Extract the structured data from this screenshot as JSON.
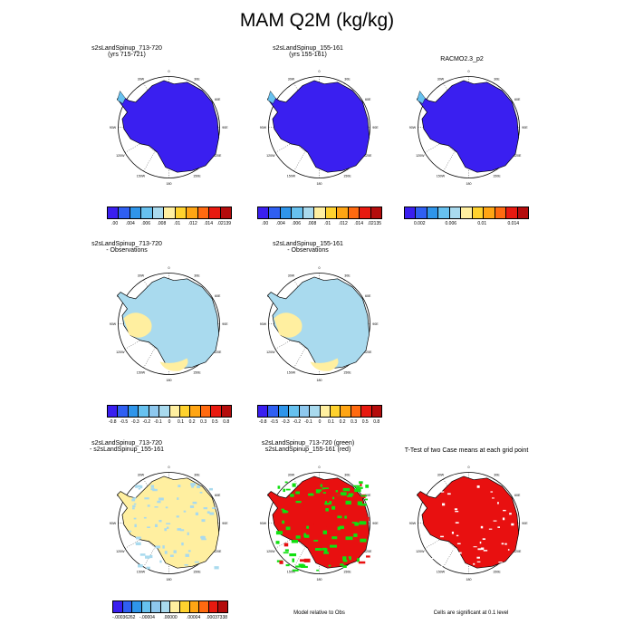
{
  "title": "MAM Q2M (kg/kg)",
  "panels": [
    {
      "line1": "s2sLandSpinup_713-720",
      "line2": "(yrs 715-721)",
      "fill": "model"
    },
    {
      "line1": "s2sLandSpinup_155-161",
      "line2": "(yrs 155-161)",
      "fill": "model"
    },
    {
      "line1": "RACMO2.3_p2",
      "line2": "",
      "fill": "model"
    },
    {
      "line1": "s2sLandSpinup_713-720",
      "line2": "- Observations",
      "fill": "bias"
    },
    {
      "line1": "s2sLandSpinup_155-161",
      "line2": "- Observations",
      "fill": "bias"
    },
    {
      "line1": "s2sLandSpinup_713-720",
      "line2": "- s2sLandSpinup_155-161",
      "fill": "diff"
    },
    {
      "line1": "s2sLandSpinup_713-720 (green)",
      "line2": "s2sLandSpinup_155-161 (red)",
      "fill": "redgreen"
    },
    {
      "line1": "T-Test of two Case means at each grid point",
      "line2": "",
      "fill": "ttest"
    }
  ],
  "lon_labels": [
    "0",
    "30E",
    "60E",
    "90E",
    "120E",
    "150E",
    "180",
    "150W",
    "120W",
    "90W",
    "60W",
    "30W"
  ],
  "colorbars": [
    {
      "colors": [
        "#3a1ff0",
        "#2f5ff2",
        "#2f95ea",
        "#67c1ef",
        "#a9daee",
        "#ffefa0",
        "#ffd22e",
        "#ffa514",
        "#ff6a10",
        "#e81a10",
        "#b40c0c"
      ],
      "labels": [
        ".00",
        ".004",
        ".006",
        ".008",
        ".01",
        ".012",
        ".014",
        ".02139"
      ]
    },
    {
      "colors": [
        "#3a1ff0",
        "#2f5ff2",
        "#2f95ea",
        "#67c1ef",
        "#a9daee",
        "#ffefa0",
        "#ffd22e",
        "#ffa514",
        "#ff6a10",
        "#e81a10",
        "#b40c0c"
      ],
      "labels": [
        ".00",
        ".004",
        ".006",
        ".008",
        ".01",
        ".012",
        ".014",
        ".02135"
      ]
    },
    {
      "colors": [
        "#3a1ff0",
        "#2f5ff2",
        "#2f95ea",
        "#67c1ef",
        "#a9daee",
        "#ffefa0",
        "#ffd22e",
        "#ffa514",
        "#ff6a10",
        "#e81a10",
        "#b40c0c"
      ],
      "labels": [
        "0.002",
        "0.006",
        "0.01",
        "0.014"
      ]
    },
    {
      "colors": [
        "#3a1ff0",
        "#2f5ff2",
        "#2f95ea",
        "#67c1ef",
        "#8ec8ee",
        "#a9daee",
        "#ffefa0",
        "#ffd22e",
        "#ffa514",
        "#ff6a10",
        "#e81a10",
        "#b40c0c"
      ],
      "labels": [
        "-0.8",
        "-0.5",
        "-0.3",
        "-0.2",
        "-0.1",
        "0",
        "0.1",
        "0.2",
        "0.3",
        "0.5",
        "0.8"
      ]
    },
    {
      "colors": [
        "#3a1ff0",
        "#2f5ff2",
        "#2f95ea",
        "#67c1ef",
        "#8ec8ee",
        "#a9daee",
        "#ffefa0",
        "#ffd22e",
        "#ffa514",
        "#ff6a10",
        "#e81a10",
        "#b40c0c"
      ],
      "labels": [
        "-0.8",
        "-0.5",
        "-0.3",
        "-0.2",
        "-0.1",
        "0",
        "0.1",
        "0.2",
        "0.3",
        "0.5",
        "0.8"
      ]
    },
    {
      "colors": [
        "#3a1ff0",
        "#2f5ff2",
        "#2f95ea",
        "#67c1ef",
        "#8ec8ee",
        "#a9daee",
        "#ffefa0",
        "#ffd22e",
        "#ffa514",
        "#ff6a10",
        "#e81a10",
        "#b40c0c"
      ],
      "labels": [
        "-.00036262",
        "-.00004",
        ".00000",
        ".00004",
        ".00037338"
      ]
    }
  ],
  "notes": {
    "redgreen": "Model relative to Obs",
    "ttest": "Cells are significant at 0.1 level"
  },
  "colors": {
    "model_fill": "#3a1ff0",
    "bias_fill": "#a9daee",
    "bias_pos": "#ffefa0",
    "red": "#e81010",
    "green": "#10e010"
  }
}
